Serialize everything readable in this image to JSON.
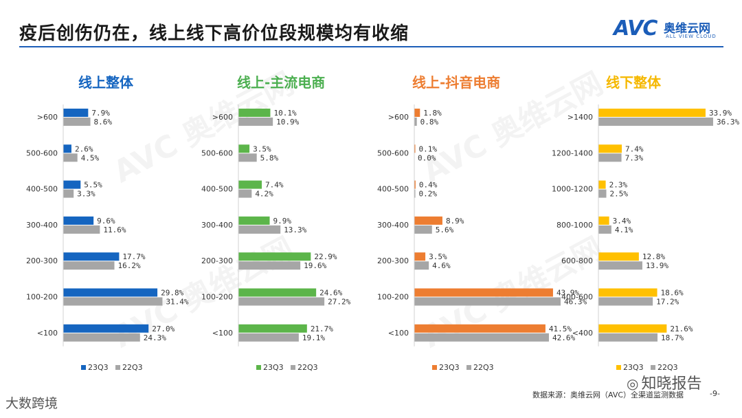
{
  "title": "疫后创伤仍在，线上线下高价位段规模均有收缩",
  "logo": {
    "mark": "AVC",
    "cn": "奥维云网",
    "en": "ALL VIEW CLOUD",
    "brand_color": "#1b5db8"
  },
  "source": "数据来源：奥维云网（AVC）全渠道监测数据",
  "page_number": "-9-",
  "brand_left": "大数跨境",
  "brand_right": "知晓报告",
  "brand_right_icon": "wechat-icon",
  "watermark": {
    "mark": "AVC",
    "cn": "奥维云网",
    "en": "ALL VIEW CLOUD"
  },
  "chart_data": [
    {
      "type": "bar",
      "orientation": "horizontal",
      "title": "线上整体",
      "title_color": "#1565c0",
      "categories": [
        ">600",
        "500-600",
        "400-500",
        "300-400",
        "200-300",
        "100-200",
        "<100"
      ],
      "series": [
        {
          "name": "23Q3",
          "color": "#1565c0",
          "values": [
            7.9,
            2.6,
            5.5,
            9.6,
            17.7,
            29.8,
            27.0
          ]
        },
        {
          "name": "22Q3",
          "color": "#a6a6a6",
          "values": [
            8.6,
            4.5,
            3.3,
            11.6,
            16.2,
            31.4,
            24.3
          ]
        }
      ],
      "value_suffix": "%",
      "legend": "bottom",
      "xlim": [
        0,
        45
      ]
    },
    {
      "type": "bar",
      "orientation": "horizontal",
      "title": "线上-主流电商",
      "title_color": "#4caf50",
      "categories": [
        ">600",
        "500-600",
        "400-500",
        "300-400",
        "200-300",
        "100-200",
        "<100"
      ],
      "series": [
        {
          "name": "23Q3",
          "color": "#5cb54a",
          "values": [
            10.1,
            3.5,
            7.4,
            9.9,
            22.9,
            24.6,
            21.7
          ]
        },
        {
          "name": "22Q3",
          "color": "#a6a6a6",
          "values": [
            10.9,
            5.8,
            4.2,
            13.3,
            19.6,
            27.2,
            19.1
          ]
        }
      ],
      "value_suffix": "%",
      "legend": "bottom",
      "xlim": [
        0,
        45
      ]
    },
    {
      "type": "bar",
      "orientation": "horizontal",
      "title": "线上-抖音电商",
      "title_color": "#ed7d31",
      "categories": [
        ">600",
        "500-600",
        "400-500",
        "300-400",
        "200-300",
        "100-200",
        "<100"
      ],
      "series": [
        {
          "name": "23Q3",
          "color": "#ed7d31",
          "values": [
            1.8,
            0.1,
            0.4,
            8.9,
            3.5,
            43.9,
            41.5
          ]
        },
        {
          "name": "22Q3",
          "color": "#a6a6a6",
          "values": [
            0.8,
            0.0,
            0.2,
            5.6,
            4.6,
            46.3,
            42.6
          ]
        }
      ],
      "value_suffix": "%",
      "legend": "bottom",
      "xlim": [
        0,
        45
      ]
    },
    {
      "type": "bar",
      "orientation": "horizontal",
      "title": "线下整体",
      "title_color": "#f5b800",
      "categories": [
        ">1400",
        "1200-1400",
        "1000-1200",
        "800-1000",
        "600-800",
        "400-600",
        "<400"
      ],
      "series": [
        {
          "name": "23Q3",
          "color": "#ffc000",
          "values": [
            33.9,
            7.4,
            2.3,
            3.4,
            12.8,
            18.6,
            21.6
          ]
        },
        {
          "name": "22Q3",
          "color": "#a6a6a6",
          "values": [
            36.3,
            7.3,
            2.5,
            4.1,
            13.9,
            17.2,
            18.7
          ]
        }
      ],
      "value_suffix": "%",
      "legend": "bottom",
      "xlim": [
        0,
        45
      ]
    }
  ]
}
